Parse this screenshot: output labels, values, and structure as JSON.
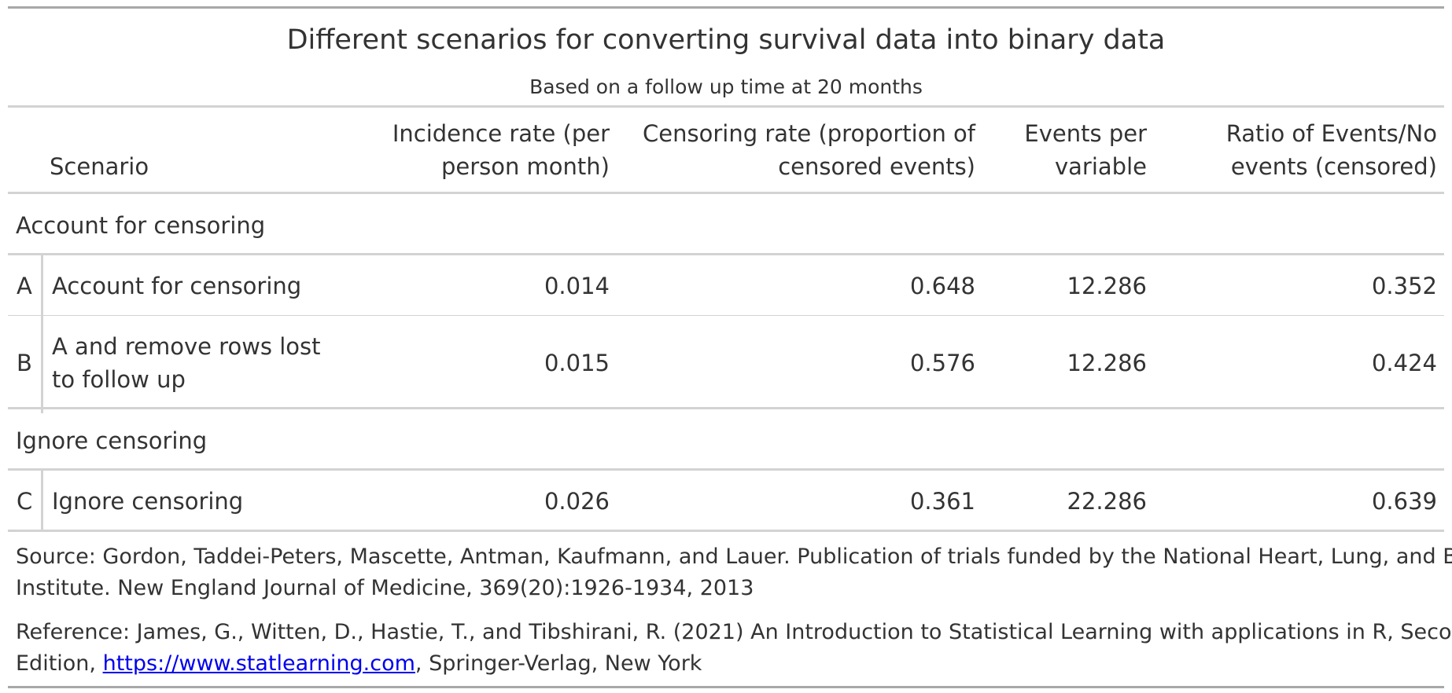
{
  "heading": {
    "title": "Different scenarios for converting survival data into binary data",
    "subtitle": "Based on a follow up time at 20 months"
  },
  "columns": {
    "scenario": "Scenario",
    "incidence_line1": "Incidence rate (per",
    "incidence_line2": "person month)",
    "censoring_line1": "Censoring rate (proportion of",
    "censoring_line2": "censored events)",
    "epv_line1": "Events per",
    "epv_line2": "variable",
    "ratio_line1": "Ratio of Events/No",
    "ratio_line2": "events (censored)"
  },
  "groups": [
    {
      "label": "Account for censoring",
      "rows": [
        {
          "id": "A",
          "scenario_line1": "Account for censoring",
          "scenario_line2": "",
          "incidence": "0.014",
          "censoring": "0.648",
          "epv": "12.286",
          "ratio": "0.352"
        },
        {
          "id": "B",
          "scenario_line1": "A and remove rows lost",
          "scenario_line2": "to follow up",
          "incidence": "0.015",
          "censoring": "0.576",
          "epv": "12.286",
          "ratio": "0.424"
        }
      ]
    },
    {
      "label": "Ignore censoring",
      "rows": [
        {
          "id": "C",
          "scenario_line1": "Ignore censoring",
          "scenario_line2": "",
          "incidence": "0.026",
          "censoring": "0.361",
          "epv": "22.286",
          "ratio": "0.639"
        }
      ]
    }
  ],
  "footnotes": {
    "source_line1": "Source: Gordon, Taddei-Peters, Mascette, Antman, Kaufmann, and Lauer. Publication of trials funded by the National Heart, Lung, and Blood",
    "source_line2": "Institute. New England Journal of Medicine, 369(20):1926-1934, 2013",
    "reference_line1": "Reference: James, G., Witten, D., Hastie, T., and Tibshirani, R. (2021) An Introduction to Statistical Learning with applications in R, Second",
    "reference_line2_prefix": "Edition, ",
    "reference_link": "https://www.statlearning.com",
    "reference_line2_suffix": ", Springer-Verlag, New York"
  },
  "colors": {
    "text": "#333333",
    "rule": "#d3d3d3",
    "link": "#0000ee"
  }
}
